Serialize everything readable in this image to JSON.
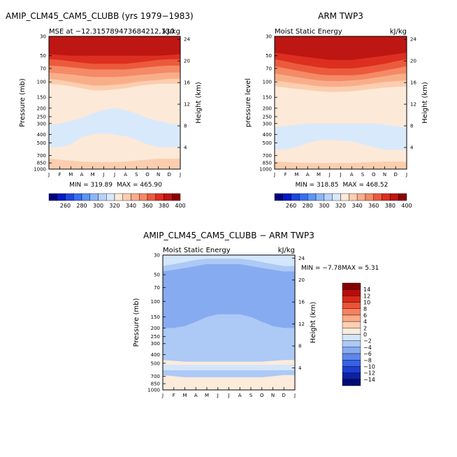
{
  "chart_data": [
    {
      "type": "heatmap",
      "title": "AMIP_CLM45_CAM5_CLUBB (yrs 1979−1983)",
      "subtitle_left": "MSE at −12.315789473684212,130",
      "subtitle_right": "kJ/kg",
      "ylabel": "Pressure (mb)",
      "ylabel_right": "Height (km)",
      "x_ticks": [
        "J",
        "F",
        "M",
        "A",
        "M",
        "J",
        "J",
        "A",
        "S",
        "O",
        "N",
        "D",
        "J"
      ],
      "y_ticks": [
        "30",
        "50",
        "70",
        "100",
        "150",
        "200",
        "250",
        "300",
        "400",
        "500",
        "700",
        "850",
        "1000"
      ],
      "y2_ticks": [
        "24",
        "20",
        "16",
        "12",
        "8",
        "4"
      ],
      "min_text": "MIN = 319.89",
      "max_text": "MAX = 465.90",
      "colorbar_labels": [
        "260",
        "280",
        "300",
        "320",
        "340",
        "360",
        "380",
        "400"
      ],
      "bands": [
        {
          "p": [
            30,
            30,
            30,
            30,
            30,
            30,
            30,
            30,
            30,
            30,
            30,
            30,
            30
          ],
          "v": 410
        },
        {
          "p": [
            48,
            49,
            50,
            50,
            50,
            50,
            50,
            50,
            50,
            50,
            50,
            49,
            48
          ],
          "v": 395
        },
        {
          "p": [
            55,
            56,
            58,
            60,
            62,
            62,
            62,
            62,
            60,
            58,
            56,
            55,
            55
          ],
          "v": 385
        },
        {
          "p": [
            65,
            66,
            68,
            70,
            72,
            72,
            72,
            72,
            70,
            68,
            66,
            65,
            65
          ],
          "v": 375
        },
        {
          "p": [
            78,
            80,
            82,
            85,
            88,
            88,
            88,
            86,
            84,
            82,
            80,
            78,
            78
          ],
          "v": 365
        },
        {
          "p": [
            92,
            95,
            100,
            105,
            110,
            110,
            108,
            105,
            100,
            97,
            95,
            92,
            92
          ],
          "v": 355
        },
        {
          "p": [
            105,
            108,
            112,
            118,
            125,
            125,
            122,
            118,
            112,
            108,
            105,
            105,
            105
          ],
          "v": 345
        },
        {
          "p": [
            310,
            300,
            280,
            260,
            230,
            210,
            200,
            210,
            230,
            260,
            280,
            300,
            310
          ],
          "v": 335
        },
        {
          "p": [
            560,
            560,
            520,
            430,
            400,
            390,
            400,
            420,
            460,
            520,
            560,
            560,
            560
          ],
          "v": 325
        },
        {
          "p": [
            760,
            780,
            800,
            820,
            830,
            830,
            830,
            820,
            800,
            780,
            760,
            760,
            760
          ],
          "v": 335
        },
        {
          "p": [
            920,
            930,
            940,
            950,
            950,
            950,
            950,
            950,
            940,
            930,
            920,
            920,
            920
          ],
          "v": 345
        }
      ]
    },
    {
      "type": "heatmap",
      "title": "ARM TWP3",
      "subtitle_left": "Moist Static Energy",
      "subtitle_right": "kJ/kg",
      "ylabel": "pressure level",
      "ylabel_right": "Height (km)",
      "x_ticks": [
        "J",
        "F",
        "M",
        "A",
        "M",
        "J",
        "J",
        "A",
        "S",
        "O",
        "N",
        "D",
        "J"
      ],
      "y_ticks": [
        "30",
        "50",
        "70",
        "100",
        "150",
        "200",
        "250",
        "300",
        "400",
        "500",
        "700",
        "850",
        "1000"
      ],
      "y2_ticks": [
        "24",
        "20",
        "16",
        "12",
        "8",
        "4"
      ],
      "min_text": "MIN = 318.85",
      "max_text": "MAX = 468.52",
      "colorbar_labels": [
        "260",
        "280",
        "300",
        "320",
        "340",
        "360",
        "380",
        "400"
      ],
      "bands": [
        {
          "p": [
            30,
            30,
            30,
            30,
            30,
            30,
            30,
            30,
            30,
            30,
            30,
            30,
            30
          ],
          "v": 410
        },
        {
          "p": [
            46,
            48,
            50,
            52,
            54,
            56,
            56,
            56,
            54,
            52,
            50,
            48,
            46
          ],
          "v": 395
        },
        {
          "p": [
            55,
            58,
            62,
            65,
            68,
            70,
            70,
            70,
            68,
            65,
            62,
            58,
            55
          ],
          "v": 385
        },
        {
          "p": [
            66,
            70,
            74,
            78,
            82,
            84,
            84,
            84,
            82,
            78,
            74,
            70,
            66
          ],
          "v": 375
        },
        {
          "p": [
            80,
            84,
            88,
            92,
            96,
            98,
            98,
            96,
            94,
            90,
            86,
            82,
            80
          ],
          "v": 365
        },
        {
          "p": [
            96,
            100,
            104,
            108,
            112,
            114,
            114,
            112,
            108,
            104,
            100,
            98,
            96
          ],
          "v": 355
        },
        {
          "p": [
            112,
            116,
            120,
            124,
            128,
            130,
            130,
            128,
            124,
            120,
            116,
            114,
            112
          ],
          "v": 345
        },
        {
          "p": [
            330,
            320,
            310,
            300,
            300,
            300,
            300,
            300,
            300,
            300,
            310,
            320,
            330
          ],
          "v": 335
        },
        {
          "p": [
            600,
            600,
            560,
            500,
            470,
            460,
            470,
            480,
            520,
            560,
            600,
            600,
            600
          ],
          "v": 325
        },
        {
          "p": [
            820,
            830,
            840,
            850,
            850,
            850,
            850,
            850,
            840,
            830,
            820,
            820,
            820
          ],
          "v": 335
        },
        {
          "p": [
            940,
            950,
            960,
            970,
            970,
            970,
            970,
            970,
            960,
            950,
            940,
            940,
            940
          ],
          "v": 345
        }
      ]
    },
    {
      "type": "heatmap",
      "title": "AMIP_CLM45_CAM5_CLUBB − ARM TWP3",
      "subtitle_left": "Moist Static Energy",
      "subtitle_right": "kJ/kg",
      "ylabel": "Pressure (mb)",
      "ylabel_right": "Height (km)",
      "x_ticks": [
        "J",
        "F",
        "M",
        "A",
        "M",
        "J",
        "J",
        "A",
        "S",
        "O",
        "N",
        "D",
        "J"
      ],
      "y_ticks": [
        "30",
        "50",
        "70",
        "100",
        "150",
        "200",
        "250",
        "300",
        "400",
        "500",
        "700",
        "850",
        "1000"
      ],
      "y2_ticks": [
        "24",
        "20",
        "16",
        "12",
        "8",
        "4"
      ],
      "min_text": "MIN =  −7.78",
      "max_text": "MAX =   5.31",
      "colorbar_labels": [
        "14",
        "12",
        "10",
        "8",
        "6",
        "4",
        "2",
        "0",
        "−2",
        "−4",
        "−6",
        "−8",
        "−10",
        "−12",
        "−14"
      ],
      "bands": [
        {
          "p": [
            30,
            30,
            30,
            30,
            30,
            30,
            30,
            30,
            30,
            30,
            30,
            30,
            30
          ],
          "v": 1
        },
        {
          "p": [
            40,
            38,
            36,
            34,
            33,
            33,
            33,
            33,
            34,
            36,
            38,
            40,
            40
          ],
          "v": -1
        },
        {
          "p": [
            46,
            44,
            42,
            40,
            38,
            38,
            38,
            38,
            40,
            42,
            44,
            46,
            46
          ],
          "v": -3
        },
        {
          "p": [
            200,
            200,
            190,
            170,
            150,
            140,
            140,
            140,
            150,
            170,
            190,
            200,
            200
          ],
          "v": -5
        },
        {
          "p": [
            460,
            470,
            480,
            480,
            480,
            480,
            480,
            480,
            480,
            480,
            470,
            460,
            460
          ],
          "v": -3
        },
        {
          "p": [
            520,
            520,
            520,
            520,
            520,
            520,
            520,
            520,
            520,
            520,
            520,
            520,
            520
          ],
          "v": 1
        },
        {
          "p": [
            600,
            600,
            600,
            600,
            600,
            600,
            600,
            600,
            600,
            600,
            600,
            600,
            600
          ],
          "v": -1
        },
        {
          "p": [
            680,
            700,
            720,
            720,
            720,
            720,
            720,
            720,
            720,
            720,
            700,
            680,
            680
          ],
          "v": -3
        },
        {
          "p": [
            880,
            900,
            900,
            900,
            900,
            880,
            860,
            880,
            900,
            900,
            900,
            880,
            880
          ],
          "v": 1
        }
      ]
    }
  ]
}
